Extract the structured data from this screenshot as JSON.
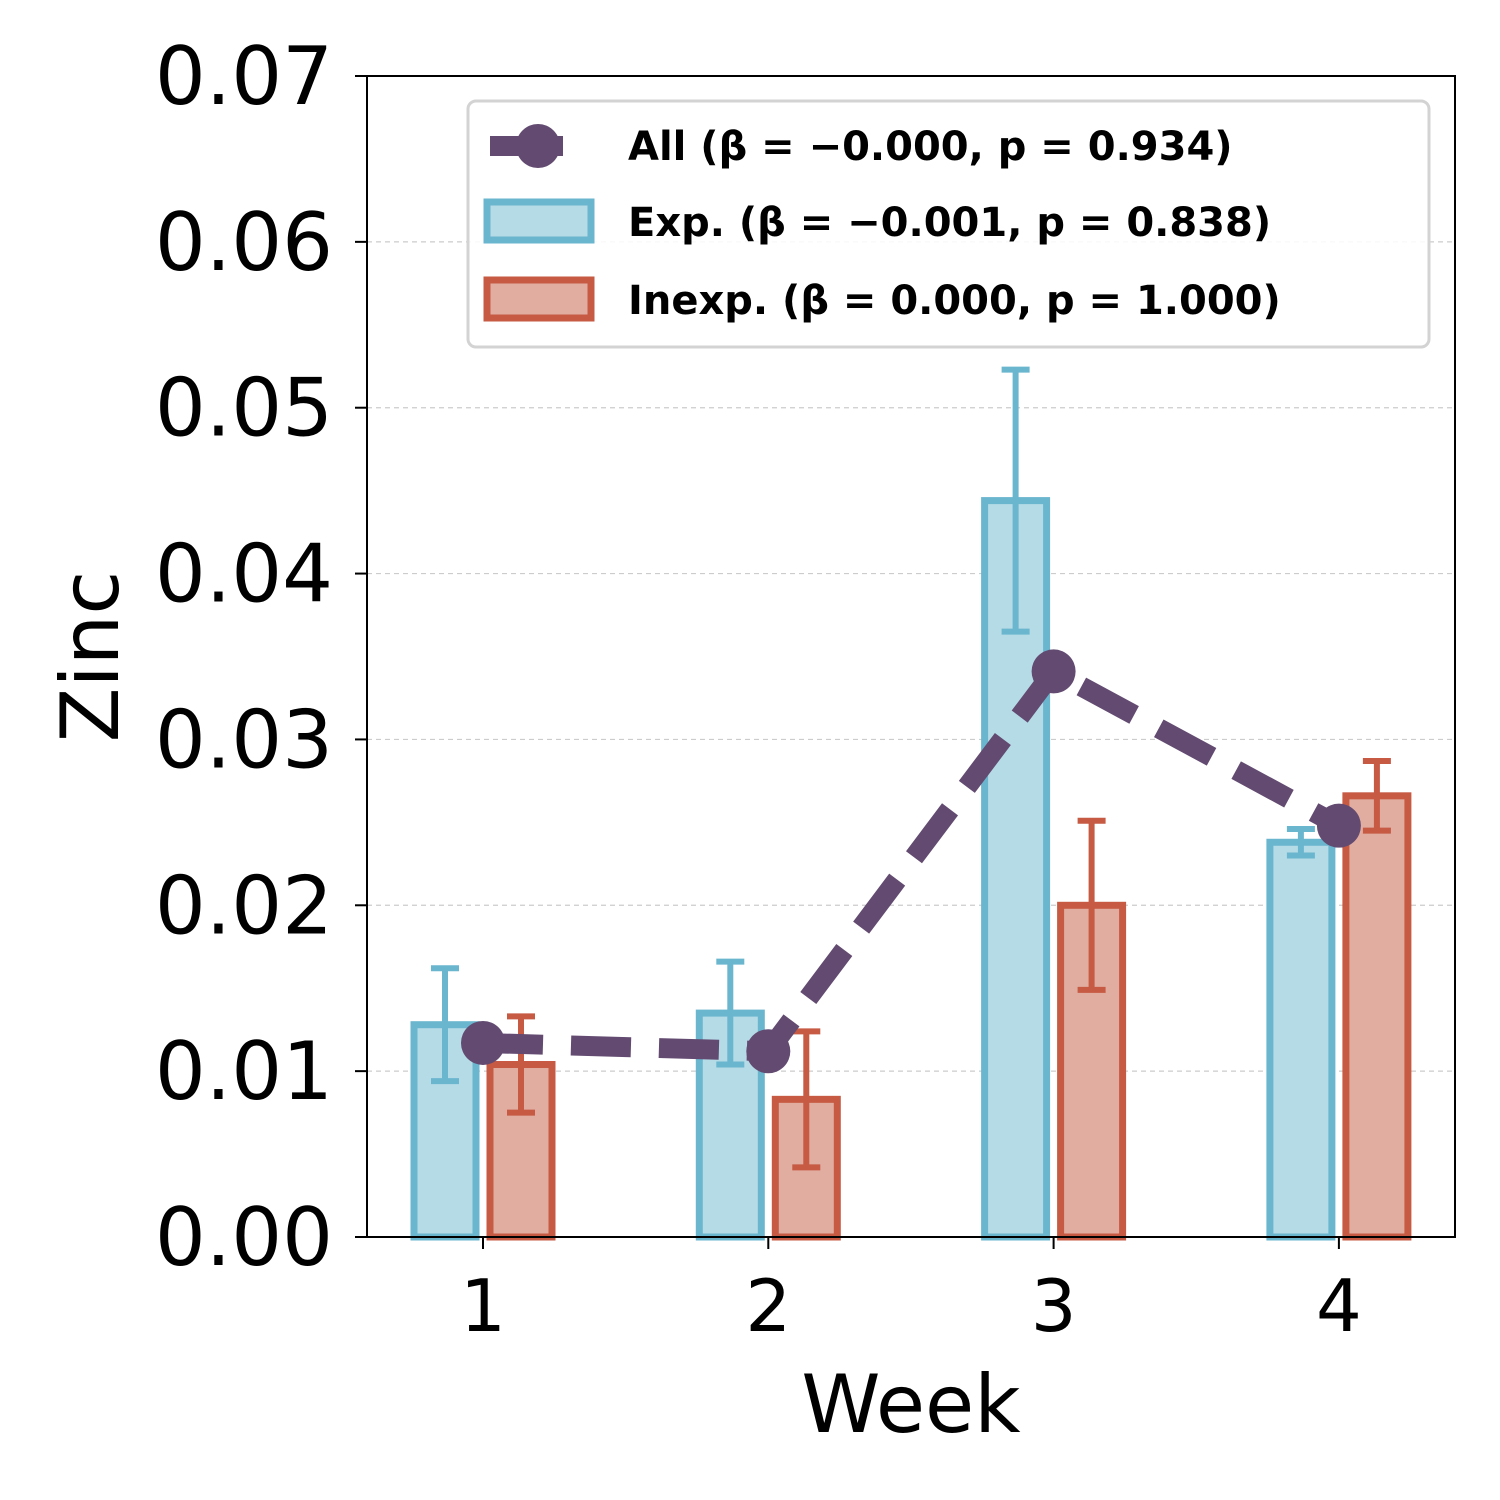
{
  "chart_data": {
    "type": "bar",
    "title": "",
    "xlabel": "Week",
    "ylabel": "Zinc",
    "categories": [
      "1",
      "2",
      "3",
      "4"
    ],
    "ylim": [
      0,
      0.07
    ],
    "yticks": [
      "0.00",
      "0.01",
      "0.02",
      "0.03",
      "0.04",
      "0.05",
      "0.06",
      "0.07"
    ],
    "ytick_values": [
      0,
      0.01,
      0.02,
      0.03,
      0.04,
      0.05,
      0.06,
      0.07
    ],
    "grid": "horizontal dashed",
    "legend_position": "top-right",
    "series": [
      {
        "name": "Exp.",
        "legend_label": "Exp. (β = −0.001, p = 0.838)",
        "kind": "bar",
        "values": [
          0.0128,
          0.0135,
          0.0444,
          0.0238
        ],
        "errors": [
          0.0034,
          0.0031,
          0.0079,
          0.0008
        ]
      },
      {
        "name": "Inexp.",
        "legend_label": "Inexp. (β = 0.000, p = 1.000)",
        "kind": "bar",
        "values": [
          0.0104,
          0.0083,
          0.02,
          0.0266
        ],
        "errors": [
          0.0029,
          0.0041,
          0.0051,
          0.0021
        ]
      },
      {
        "name": "All",
        "legend_label": "All (β = −0.000, p = 0.934)",
        "kind": "line",
        "values": [
          0.0117,
          0.0112,
          0.0341,
          0.0248
        ]
      }
    ],
    "colors": {
      "exp_edge": "#6bb6cf",
      "exp_fill": "#b5dbe6",
      "inexp_edge": "#c65a43",
      "inexp_fill": "#e1ada1",
      "all_line": "#624a70",
      "grid": "#cccccc"
    }
  }
}
